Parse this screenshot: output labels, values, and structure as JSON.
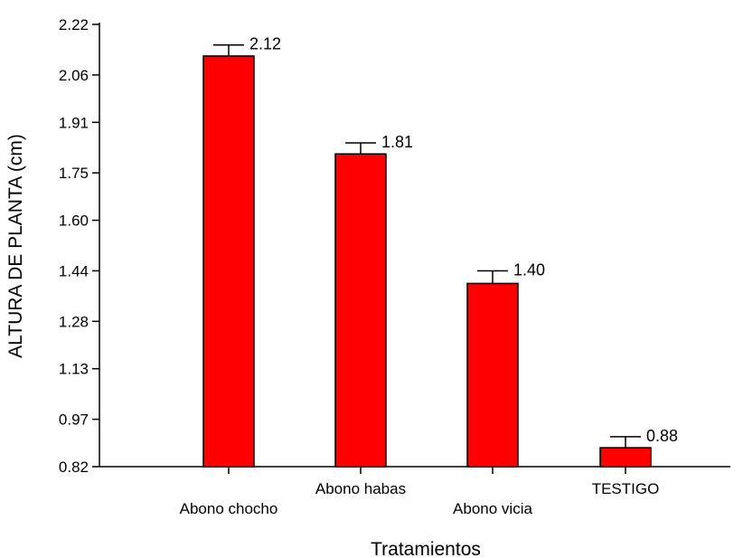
{
  "chart_data": {
    "type": "bar",
    "title": "",
    "xlabel": "Tratamientos",
    "ylabel": "ALTURA DE PLANTA (cm)",
    "categories": [
      "Abono chocho",
      "Abono habas",
      "Abono vicia",
      "TESTIGO"
    ],
    "values": [
      2.12,
      1.81,
      1.4,
      0.88
    ],
    "value_labels": [
      "2.12",
      "1.81",
      "1.40",
      "0.88"
    ],
    "error_upper": [
      2.155,
      1.845,
      1.44,
      0.915
    ],
    "ylim": [
      0.82,
      2.22
    ],
    "yticks": [
      "0.82",
      "0.97",
      "1.13",
      "1.28",
      "1.44",
      "1.60",
      "1.75",
      "1.91",
      "2.06",
      "2.22"
    ],
    "bar_color": "#ff0000",
    "grid": false,
    "legend": "none"
  }
}
